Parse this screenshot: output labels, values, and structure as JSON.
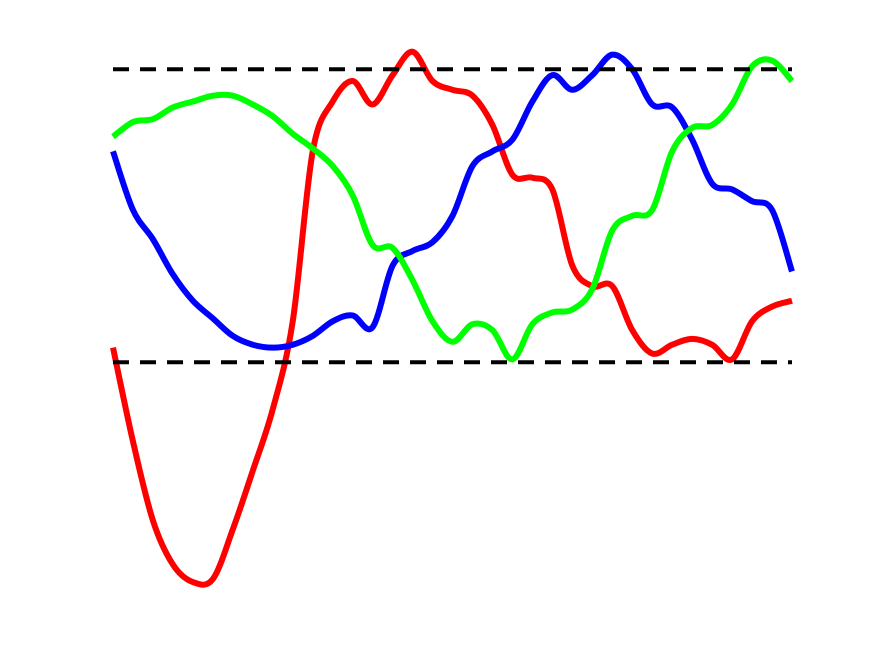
{
  "chart_data": {
    "type": "line",
    "x": [
      0,
      1,
      2,
      3,
      4,
      5,
      6,
      7,
      8,
      9,
      10,
      11,
      12,
      13,
      14,
      15,
      16,
      17,
      18,
      19,
      20,
      21,
      22,
      23,
      24,
      25,
      26,
      27,
      28,
      29,
      30,
      31,
      32,
      33,
      34
    ],
    "xlim": [
      0,
      34
    ],
    "ylim": [
      -0.9,
      1.1
    ],
    "hlines": [
      1,
      0
    ],
    "hline_color": "#000000",
    "series": [
      {
        "color": "#ff0000",
        "values": [
          0.05,
          -0.27,
          -0.54,
          -0.69,
          -0.75,
          -0.74,
          -0.57,
          -0.37,
          -0.16,
          0.14,
          0.72,
          0.89,
          0.96,
          0.88,
          0.98,
          1.06,
          0.96,
          0.93,
          0.91,
          0.81,
          0.64,
          0.63,
          0.59,
          0.33,
          0.26,
          0.26,
          0.11,
          0.03,
          0.06,
          0.08,
          0.06,
          0.01,
          0.14,
          0.19,
          0.21
        ]
      },
      {
        "color": "#0000ff",
        "values": [
          0.72,
          0.52,
          0.42,
          0.3,
          0.21,
          0.15,
          0.09,
          0.06,
          0.05,
          0.06,
          0.09,
          0.14,
          0.16,
          0.12,
          0.33,
          0.38,
          0.41,
          0.5,
          0.67,
          0.72,
          0.76,
          0.89,
          0.98,
          0.93,
          0.98,
          1.05,
          1.0,
          0.88,
          0.87,
          0.76,
          0.61,
          0.59,
          0.55,
          0.52,
          0.31
        ]
      },
      {
        "color": "#00ff00",
        "values": [
          0.77,
          0.82,
          0.83,
          0.87,
          0.89,
          0.91,
          0.91,
          0.88,
          0.84,
          0.78,
          0.73,
          0.67,
          0.57,
          0.4,
          0.39,
          0.28,
          0.14,
          0.07,
          0.13,
          0.11,
          0.01,
          0.13,
          0.17,
          0.18,
          0.25,
          0.45,
          0.5,
          0.52,
          0.72,
          0.8,
          0.81,
          0.88,
          1.01,
          1.03,
          0.96
        ]
      }
    ]
  }
}
